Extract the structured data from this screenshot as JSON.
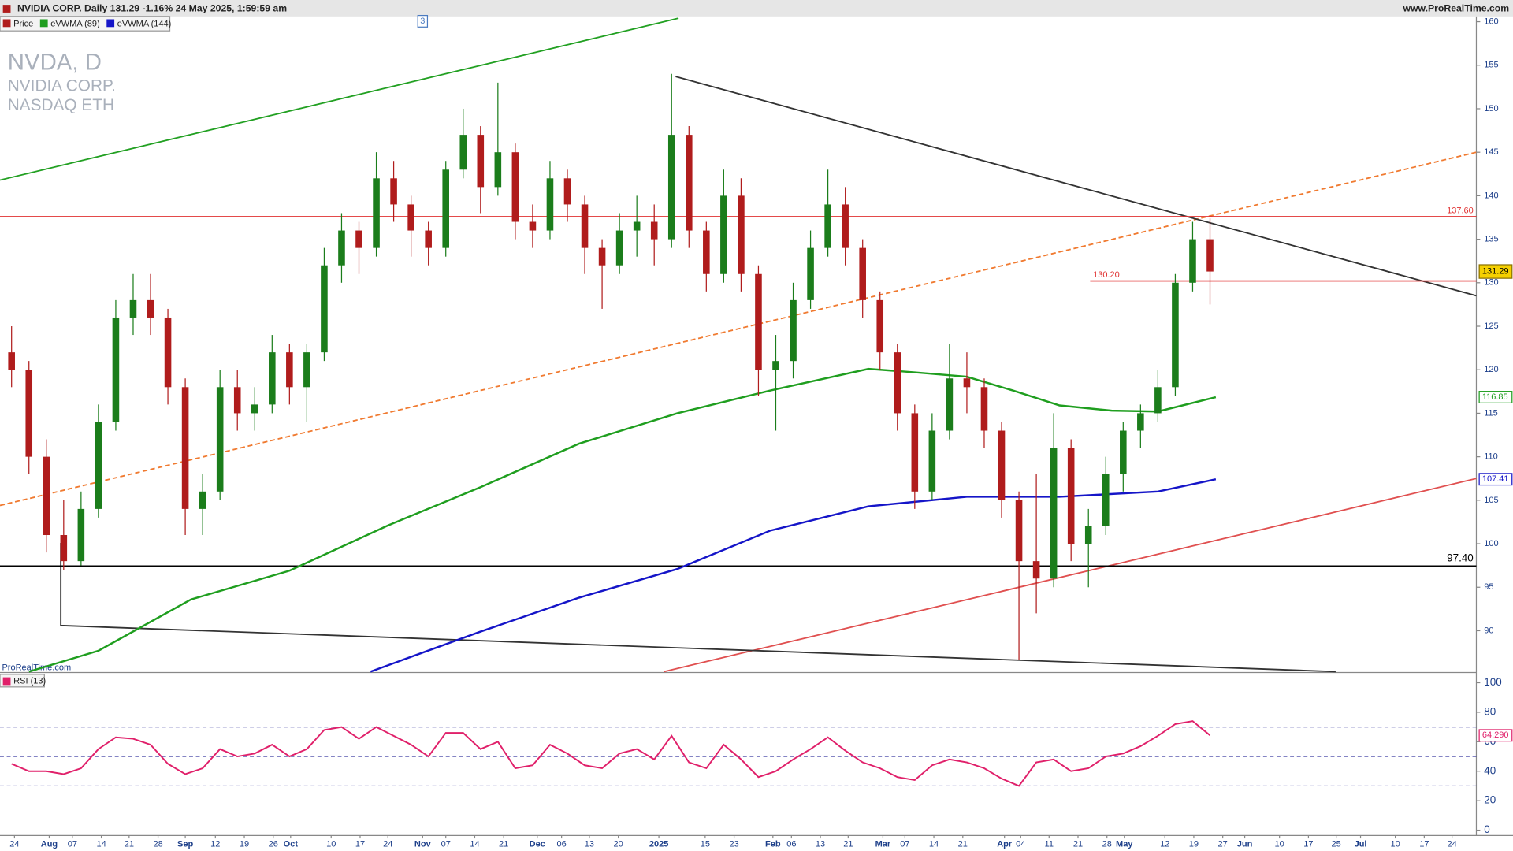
{
  "header": {
    "title": "NVIDIA CORP. Daily 131.29 -1.16% 24 May 2025, 1:59:59 am",
    "site": "www.ProRealTime.com"
  },
  "chart_data": [
    {
      "type": "candlestick",
      "price_name": "Price",
      "symbol": "NVDA, D",
      "name": "NVIDIA CORP.",
      "exchange": "NASDAQ ETH",
      "watermark": "ProRealTime.com",
      "marker": {
        "x": 73,
        "label": "3"
      },
      "xlim": [
        0,
        255
      ],
      "ylim": [
        85.2,
        160.5
      ],
      "xticks": [
        {
          "value": 2.5,
          "label": "24"
        },
        {
          "value": 8.5,
          "label": "Aug"
        },
        {
          "value": 12.5,
          "label": "07"
        },
        {
          "value": 17.5,
          "label": "14"
        },
        {
          "value": 22.3,
          "label": "21"
        },
        {
          "value": 27.3,
          "label": "28"
        },
        {
          "value": 32,
          "label": "Sep"
        },
        {
          "value": 37.2,
          "label": "12"
        },
        {
          "value": 42.2,
          "label": "19"
        },
        {
          "value": 47.2,
          "label": "26"
        },
        {
          "value": 50.2,
          "label": "Oct"
        },
        {
          "value": 57.2,
          "label": "10"
        },
        {
          "value": 62.2,
          "label": "17"
        },
        {
          "value": 67,
          "label": "24"
        },
        {
          "value": 73,
          "label": "Nov"
        },
        {
          "value": 77,
          "label": "07"
        },
        {
          "value": 82,
          "label": "14"
        },
        {
          "value": 87,
          "label": "21"
        },
        {
          "value": 92.8,
          "label": "Dec"
        },
        {
          "value": 97,
          "label": "06"
        },
        {
          "value": 101.8,
          "label": "13"
        },
        {
          "value": 106.8,
          "label": "20"
        },
        {
          "value": 113.8,
          "label": "2025"
        },
        {
          "value": 121.8,
          "label": "15"
        },
        {
          "value": 126.8,
          "label": "23"
        },
        {
          "value": 133.5,
          "label": "Feb"
        },
        {
          "value": 136.7,
          "label": "06"
        },
        {
          "value": 141.7,
          "label": "13"
        },
        {
          "value": 146.5,
          "label": "21"
        },
        {
          "value": 152.5,
          "label": "Mar"
        },
        {
          "value": 156.3,
          "label": "07"
        },
        {
          "value": 161.3,
          "label": "14"
        },
        {
          "value": 166.3,
          "label": "21"
        },
        {
          "value": 173.5,
          "label": "Apr"
        },
        {
          "value": 176.3,
          "label": "04"
        },
        {
          "value": 181.2,
          "label": "11"
        },
        {
          "value": 186.2,
          "label": "21"
        },
        {
          "value": 191.2,
          "label": "28"
        },
        {
          "value": 194.2,
          "label": "May"
        },
        {
          "value": 201.2,
          "label": "12"
        },
        {
          "value": 206.2,
          "label": "19"
        },
        {
          "value": 211.2,
          "label": "27"
        },
        {
          "value": 215,
          "label": "Jun"
        },
        {
          "value": 221,
          "label": "10"
        },
        {
          "value": 226,
          "label": "17"
        },
        {
          "value": 230.8,
          "label": "25"
        },
        {
          "value": 235,
          "label": "Jul"
        },
        {
          "value": 241,
          "label": "10"
        },
        {
          "value": 246,
          "label": "17"
        },
        {
          "value": 250.8,
          "label": "24"
        }
      ],
      "yticks": [
        90,
        95,
        100,
        105,
        110,
        115,
        120,
        125,
        130,
        135,
        140,
        145,
        150,
        155,
        160
      ],
      "up_color": "#1b7d1b",
      "down_color": "#b01c1c",
      "x": [
        2,
        5,
        8,
        11,
        14,
        17,
        20,
        23,
        26,
        29,
        32,
        35,
        38,
        41,
        44,
        47,
        50,
        53,
        56,
        59,
        62,
        65,
        68,
        71,
        74,
        77,
        80,
        83,
        86,
        89,
        92,
        95,
        98,
        101,
        104,
        107,
        110,
        113,
        116,
        119,
        122,
        125,
        128,
        131,
        134,
        137,
        140,
        143,
        146,
        149,
        152,
        155,
        158,
        161,
        164,
        167,
        170,
        173,
        176,
        179,
        182,
        185,
        188,
        191,
        194,
        197,
        200,
        203,
        206,
        209
      ],
      "candles": [
        [
          122,
          125,
          118,
          120
        ],
        [
          120,
          121,
          108,
          110
        ],
        [
          110,
          112,
          99,
          101
        ],
        [
          101,
          105,
          97,
          98
        ],
        [
          98,
          106,
          97.5,
          104
        ],
        [
          104,
          116,
          103,
          114
        ],
        [
          114,
          128,
          113,
          126
        ],
        [
          126,
          131,
          124,
          128
        ],
        [
          128,
          131,
          124,
          126
        ],
        [
          126,
          127,
          116,
          118
        ],
        [
          118,
          119,
          101,
          104
        ],
        [
          104,
          108,
          101,
          106
        ],
        [
          106,
          120,
          105,
          118
        ],
        [
          118,
          120,
          113,
          115
        ],
        [
          115,
          118,
          113,
          116
        ],
        [
          116,
          124,
          115,
          122
        ],
        [
          122,
          123,
          116,
          118
        ],
        [
          118,
          123,
          114,
          122
        ],
        [
          122,
          134,
          121,
          132
        ],
        [
          132,
          138,
          130,
          136
        ],
        [
          136,
          137,
          131,
          134
        ],
        [
          134,
          145,
          133,
          142
        ],
        [
          142,
          144,
          137,
          139
        ],
        [
          139,
          140,
          133,
          136
        ],
        [
          136,
          137,
          132,
          134
        ],
        [
          134,
          144,
          133,
          143
        ],
        [
          143,
          150,
          142,
          147
        ],
        [
          147,
          148,
          138,
          141
        ],
        [
          141,
          153,
          140,
          145
        ],
        [
          145,
          146,
          135,
          137
        ],
        [
          137,
          139,
          134,
          136
        ],
        [
          136,
          144,
          135,
          142
        ],
        [
          142,
          143,
          137,
          139
        ],
        [
          139,
          140,
          131,
          134
        ],
        [
          134,
          135,
          127,
          132
        ],
        [
          132,
          138,
          131,
          136
        ],
        [
          136,
          140,
          133,
          137
        ],
        [
          137,
          139,
          132,
          135
        ],
        [
          135,
          154,
          134,
          147
        ],
        [
          147,
          148,
          134,
          136
        ],
        [
          136,
          137,
          129,
          131
        ],
        [
          131,
          143,
          130,
          140
        ],
        [
          140,
          142,
          129,
          131
        ],
        [
          131,
          132,
          117,
          120
        ],
        [
          120,
          124,
          113,
          121
        ],
        [
          121,
          130,
          119,
          128
        ],
        [
          128,
          136,
          127,
          134
        ],
        [
          134,
          143,
          133,
          139
        ],
        [
          139,
          141,
          132,
          134
        ],
        [
          134,
          135,
          126,
          128
        ],
        [
          128,
          129,
          120,
          122
        ],
        [
          122,
          123,
          113,
          115
        ],
        [
          115,
          116,
          104,
          106
        ],
        [
          106,
          115,
          105,
          113
        ],
        [
          113,
          123,
          112,
          119
        ],
        [
          119,
          122,
          115,
          118
        ],
        [
          118,
          119,
          111,
          113
        ],
        [
          113,
          114,
          103,
          105
        ],
        [
          105,
          106,
          86.6,
          98
        ],
        [
          98,
          108,
          92,
          96
        ],
        [
          96,
          115,
          95,
          111
        ],
        [
          111,
          112,
          98,
          100
        ],
        [
          100,
          104,
          95,
          102
        ],
        [
          102,
          110,
          101,
          108
        ],
        [
          108,
          114,
          106,
          113
        ],
        [
          113,
          116,
          111,
          115
        ],
        [
          115,
          120,
          114,
          118
        ],
        [
          118,
          131,
          117,
          130
        ],
        [
          130,
          137,
          129,
          135
        ],
        [
          135,
          137.4,
          127.5,
          131.29
        ]
      ],
      "last_price": 131.29,
      "last_color": "#f5d000",
      "series": [
        {
          "name": "eVWMA (89)",
          "color": "#1f9e1f",
          "x": [
            5,
            17,
            33,
            50,
            67,
            83,
            100,
            117,
            133,
            150,
            158,
            167,
            175,
            183,
            192,
            200,
            210
          ],
          "values": [
            85.3,
            87.7,
            93.6,
            96.9,
            102.1,
            106.5,
            111.5,
            115,
            117.6,
            120.1,
            119.7,
            119.2,
            117.6,
            115.9,
            115.3,
            115.2,
            116.85
          ],
          "last": 116.85
        },
        {
          "name": "eVWMA (144)",
          "color": "#1515c8",
          "x": [
            64,
            83,
            100,
            117,
            133,
            150,
            167,
            183,
            200,
            210
          ],
          "values": [
            85.3,
            89.9,
            93.8,
            97.1,
            101.5,
            104.3,
            105.4,
            105.4,
            106,
            107.41
          ],
          "last": 107.41
        }
      ],
      "levels": [
        {
          "value": 137.6,
          "label": "137.60",
          "color": "#e03030",
          "x_from": 0
        },
        {
          "value": 130.2,
          "label": "130.20",
          "color": "#e03030",
          "x_from": 188.3
        },
        {
          "value": 97.4,
          "label": "97.40",
          "color": "#000000",
          "x_from": 0
        }
      ],
      "trendlines": [
        {
          "color": "#22a022",
          "dashed": false,
          "x": [
            0,
            117.2
          ],
          "values": [
            141.8,
            160.4
          ]
        },
        {
          "color": "#f07a30",
          "dashed": true,
          "x": [
            0,
            255
          ],
          "values": [
            104.4,
            145
          ]
        },
        {
          "color": "#e05050",
          "dashed": false,
          "x": [
            114.7,
            255
          ],
          "values": [
            85.3,
            107.5
          ]
        },
        {
          "color": "#333333",
          "dashed": false,
          "x": [
            116.7,
            255
          ],
          "values": [
            153.7,
            128.5
          ]
        },
        {
          "color": "#333333",
          "dashed": false,
          "x": [
            10.5,
            10.5,
            230.7
          ],
          "values": [
            100.1,
            90.6,
            85.3
          ]
        }
      ]
    },
    {
      "type": "line",
      "title": "RSI (13)",
      "xlim": [
        0,
        255
      ],
      "ylim": [
        -3,
        105
      ],
      "yticks": [
        0,
        20,
        40,
        60,
        80,
        100
      ],
      "levels": [
        30,
        50,
        70
      ],
      "series": [
        {
          "name": "RSI (13)",
          "color": "#e0206a",
          "x": [
            2,
            5,
            8,
            11,
            14,
            17,
            20,
            23,
            26,
            29,
            32,
            35,
            38,
            41,
            44,
            47,
            50,
            53,
            56,
            59,
            62,
            65,
            68,
            71,
            74,
            77,
            80,
            83,
            86,
            89,
            92,
            95,
            98,
            101,
            104,
            107,
            110,
            113,
            116,
            119,
            122,
            125,
            128,
            131,
            134,
            137,
            140,
            143,
            146,
            149,
            152,
            155,
            158,
            161,
            164,
            167,
            170,
            173,
            176,
            179,
            182,
            185,
            188,
            191,
            194,
            197,
            200,
            203,
            206,
            209
          ],
          "values": [
            45,
            40,
            40,
            38,
            42,
            55,
            63,
            62,
            58,
            45,
            38,
            42,
            55,
            50,
            52,
            58,
            50,
            55,
            68,
            70,
            62,
            70,
            64,
            58,
            50,
            66,
            66,
            55,
            60,
            42,
            44,
            58,
            52,
            44,
            42,
            52,
            55,
            48,
            64,
            46,
            42,
            58,
            48,
            36,
            40,
            48,
            55,
            63,
            54,
            46,
            42,
            36,
            34,
            44,
            48,
            46,
            42,
            35,
            30,
            46,
            48,
            40,
            42,
            50,
            52,
            57,
            64,
            72,
            74,
            64.29
          ]
        }
      ],
      "last_label": {
        "value": 64.29,
        "label": "64.290"
      }
    }
  ]
}
